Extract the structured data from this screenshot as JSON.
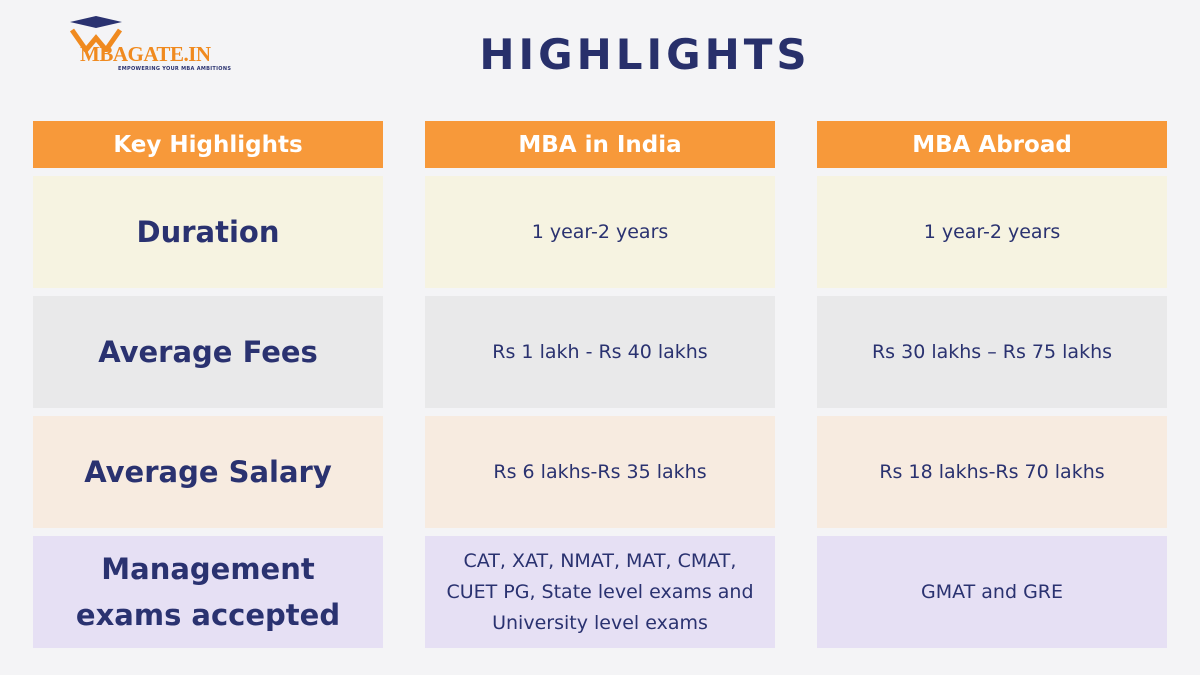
{
  "logo": {
    "name": "MBAGATE.IN",
    "tagline": "EMPOWERING YOUR MBA AMBITIONS"
  },
  "title": "HIGHLIGHTS",
  "table": {
    "header": [
      "Key Highlights",
      "MBA in India",
      "MBA Abroad"
    ],
    "rows": [
      [
        "Duration",
        "1 year-2 years",
        "1 year-2 years"
      ],
      [
        "Average Fees",
        "Rs 1 lakh - Rs 40 lakhs",
        "Rs 30 lakhs – Rs 75 lakhs"
      ],
      [
        "Average Salary",
        "Rs 6 lakhs-Rs 35 lakhs",
        "Rs 18 lakhs-Rs 70 lakhs"
      ],
      [
        "Management exams accepted",
        "CAT, XAT, NMAT, MAT, CMAT, CUET PG, State level exams and University level exams",
        "GMAT and GRE"
      ]
    ]
  }
}
